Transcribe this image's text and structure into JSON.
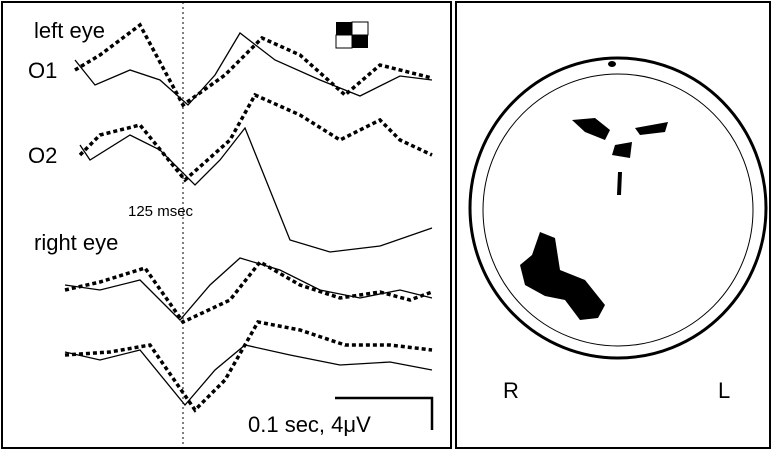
{
  "labels": {
    "left_eye": "left eye",
    "o1": "O1",
    "o2": "O2",
    "latency": "125 msec",
    "right_eye": "right eye",
    "scale": "0.1 sec, 4μV"
  },
  "brain": {
    "right": "R",
    "left": "L"
  }
}
